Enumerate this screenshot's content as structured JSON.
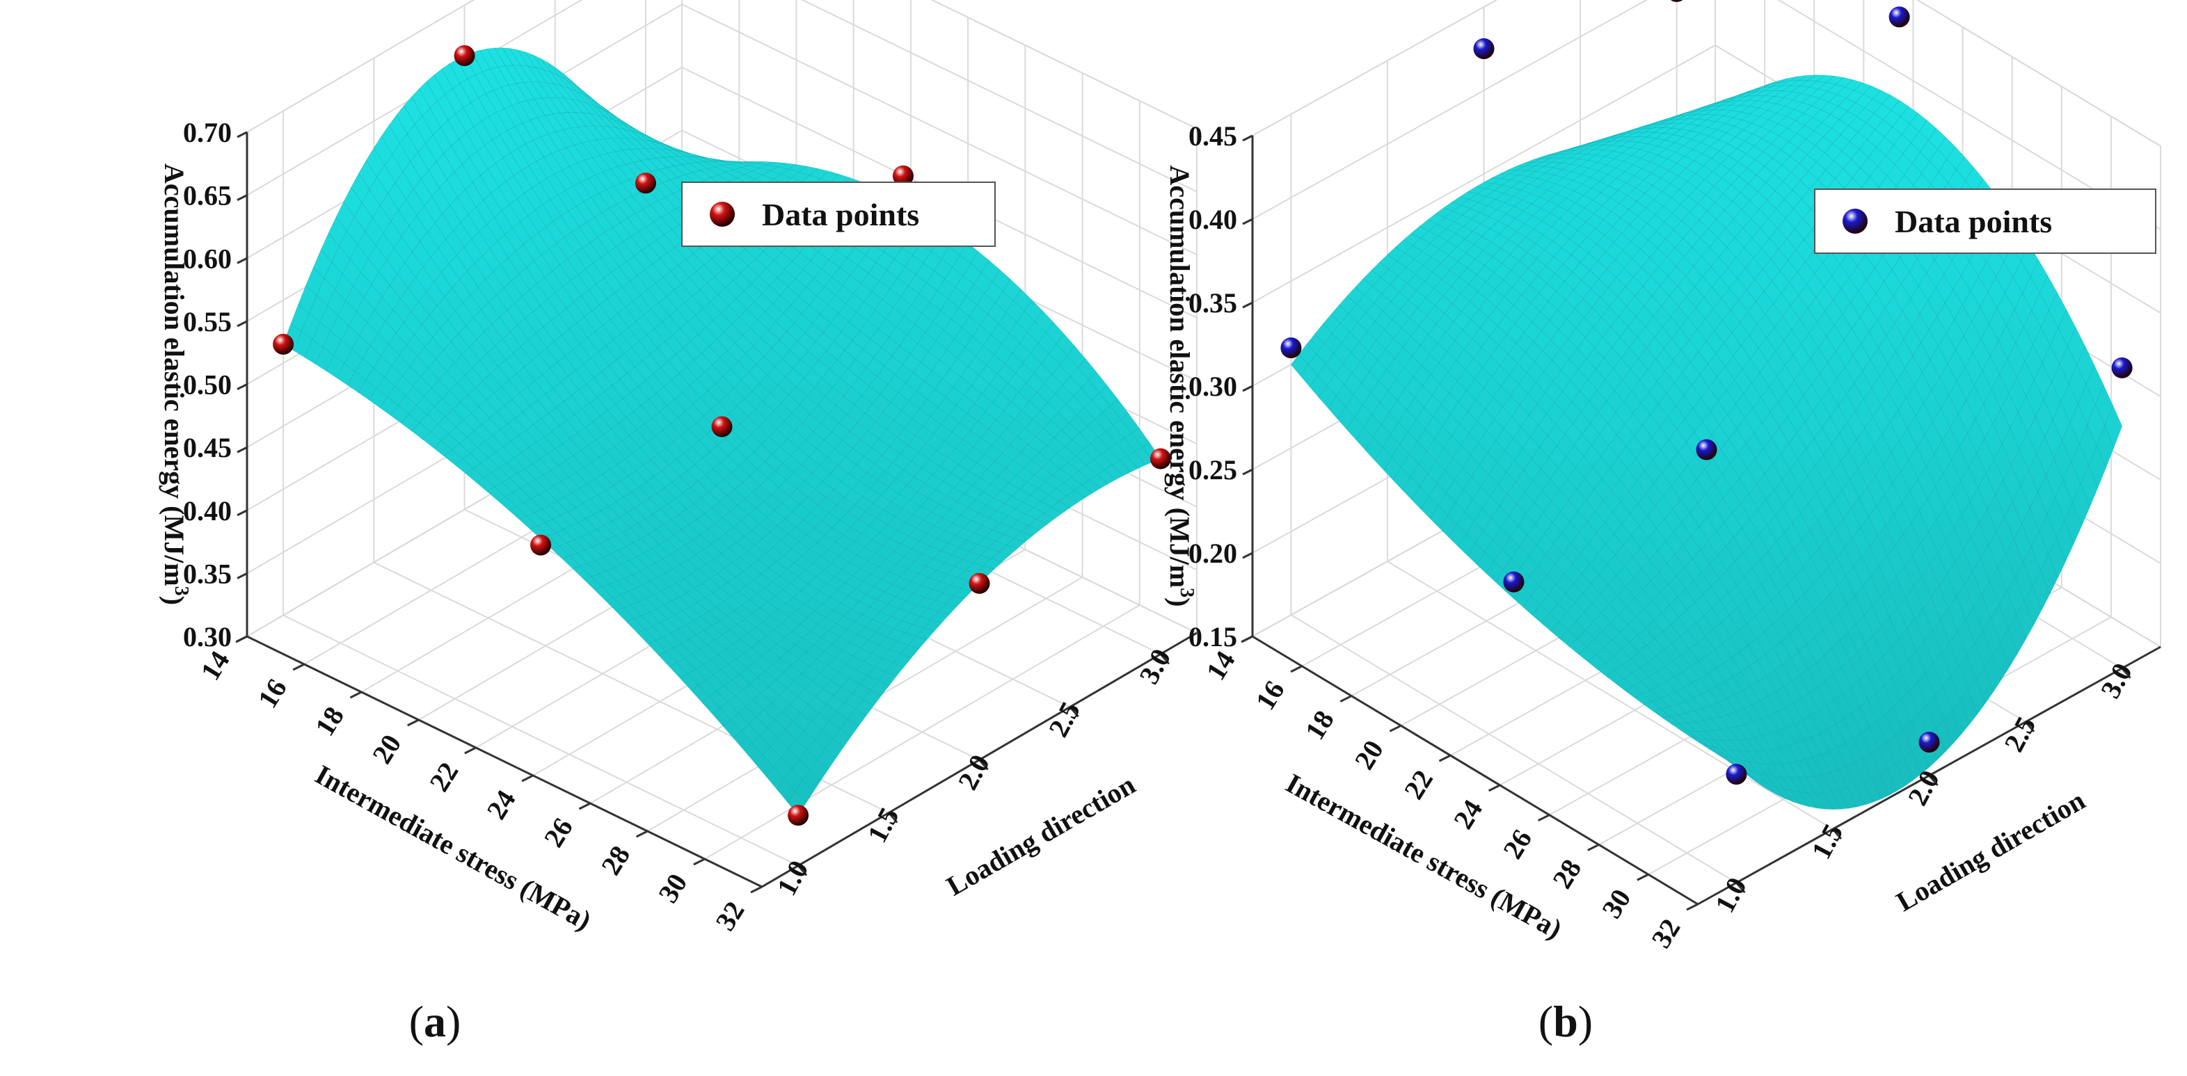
{
  "figure": {
    "panels": [
      "(a)",
      "(b)"
    ]
  },
  "colors": {
    "surface": "#22e6e6",
    "surface_dark": "#13b9c2",
    "mesh": "#0fa7b3",
    "grid": "#dadada",
    "axis": "#333333",
    "point_a": "#d21212",
    "point_b": "#1a1ad0"
  },
  "chart_data": [
    {
      "id": "a",
      "type": "surface3d",
      "panel_label": {
        "open": "(",
        "letter": "a",
        "close": ")"
      },
      "zlabel": "Accumulation elastic energy (MJ/m³)",
      "zlabel_parts": {
        "text": "Accumulation elastic energy (MJ/m",
        "sup": "3",
        "close": ")"
      },
      "xlabel": "Intermediate stress (MPa)",
      "ylabel": "Loading direction",
      "x_ticks": [
        "14",
        "16",
        "18",
        "20",
        "22",
        "24",
        "26",
        "28",
        "30",
        "32"
      ],
      "y_ticks": [
        "1.0",
        "1.5",
        "2.0",
        "2.5",
        "3.0"
      ],
      "z_ticks": [
        "0.30",
        "0.35",
        "0.40",
        "0.45",
        "0.50",
        "0.55",
        "0.60",
        "0.65",
        "0.70"
      ],
      "xlim": [
        14,
        32
      ],
      "ylim": [
        0.8,
        3.2
      ],
      "zlim": [
        0.3,
        0.7
      ],
      "legend": {
        "label": "Data points",
        "position": "top-right"
      },
      "points": [
        {
          "x": 14,
          "y": 1.0,
          "z": 0.515
        },
        {
          "x": 14,
          "y": 2.0,
          "z": 0.66
        },
        {
          "x": 14,
          "y": 3.0,
          "z": 0.475
        },
        {
          "x": 23,
          "y": 1.0,
          "z": 0.455
        },
        {
          "x": 23,
          "y": 2.0,
          "z": 0.465
        },
        {
          "x": 23,
          "y": 3.0,
          "z": 0.58
        },
        {
          "x": 32,
          "y": 1.0,
          "z": 0.34
        },
        {
          "x": 32,
          "y": 2.0,
          "z": 0.44
        },
        {
          "x": 32,
          "y": 3.0,
          "z": 0.455
        }
      ],
      "surface_range": {
        "x": [
          14,
          32
        ],
        "y": [
          1.0,
          3.0
        ]
      },
      "surface_grid_z": [
        [
          0.515,
          0.66,
          0.475
        ],
        [
          0.46,
          0.47,
          0.56
        ],
        [
          0.34,
          0.44,
          0.455
        ]
      ]
    },
    {
      "id": "b",
      "type": "surface3d",
      "panel_label": {
        "open": "(",
        "letter": "b",
        "close": ")"
      },
      "zlabel": "Accumulation elastic energy (MJ/m³)",
      "zlabel_parts": {
        "text": "Accumulation elastic energy (MJ/m",
        "sup": "3",
        "close": ")"
      },
      "xlabel": "Intermediate stress (MPa)",
      "ylabel": "Loading direction",
      "x_ticks": [
        "14",
        "16",
        "18",
        "20",
        "22",
        "24",
        "26",
        "28",
        "30",
        "32"
      ],
      "y_ticks": [
        "1.0",
        "1.5",
        "2.0",
        "2.5",
        "3.0"
      ],
      "z_ticks": [
        "0.15",
        "0.20",
        "0.25",
        "0.30",
        "0.35",
        "0.40",
        "0.45"
      ],
      "xlim": [
        14,
        32
      ],
      "ylim": [
        0.8,
        3.2
      ],
      "zlim": [
        0.15,
        0.45
      ],
      "legend": {
        "label": "Data points",
        "position": "top-right"
      },
      "points": [
        {
          "x": 14,
          "y": 1.0,
          "z": 0.31
        },
        {
          "x": 14,
          "y": 2.0,
          "z": 0.425
        },
        {
          "x": 14,
          "y": 3.0,
          "z": 0.395
        },
        {
          "x": 23,
          "y": 1.0,
          "z": 0.25
        },
        {
          "x": 23,
          "y": 2.0,
          "z": 0.265
        },
        {
          "x": 23,
          "y": 3.0,
          "z": 0.46
        },
        {
          "x": 32,
          "y": 1.0,
          "z": 0.215
        },
        {
          "x": 32,
          "y": 2.0,
          "z": 0.17
        },
        {
          "x": 32,
          "y": 3.0,
          "z": 0.33
        }
      ],
      "surface_range": {
        "x": [
          14,
          32
        ],
        "y": [
          1.0,
          3.0
        ]
      },
      "surface_grid_z": [
        [
          0.3,
          0.345,
          0.3
        ],
        [
          0.24,
          0.33,
          0.41
        ],
        [
          0.22,
          0.155,
          0.295
        ]
      ]
    }
  ]
}
